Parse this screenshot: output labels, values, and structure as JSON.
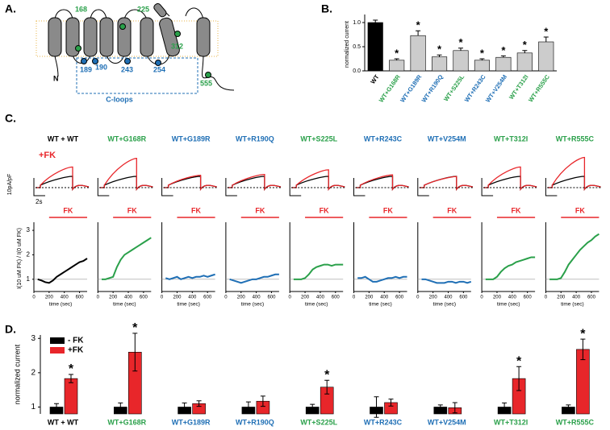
{
  "panel_labels": [
    "A.",
    "B.",
    "C.",
    "D."
  ],
  "diagram": {
    "n_terminus": "N",
    "c_loops": "C-loops",
    "residues": [
      "168",
      "225",
      "312",
      "189",
      "190",
      "243",
      "254",
      "555"
    ]
  },
  "chart_data": [
    {
      "type": "bar",
      "ylabel": "normalized current",
      "categories": [
        "WT",
        "WT+G168R",
        "WT+G189R",
        "WT+R190Q",
        "WT+S225L",
        "WT+R243C",
        "WT+V254M",
        "WT+T312I",
        "WT+R555C"
      ],
      "label_colors": [
        "#000000",
        "#2aa04a",
        "#1f6fb5",
        "#1f6fb5",
        "#2aa04a",
        "#1f6fb5",
        "#1f6fb5",
        "#2aa04a",
        "#2aa04a"
      ],
      "values": [
        1.0,
        0.22,
        0.73,
        0.29,
        0.42,
        0.22,
        0.28,
        0.37,
        0.6
      ],
      "errors": [
        0.05,
        0.03,
        0.1,
        0.04,
        0.05,
        0.03,
        0.03,
        0.05,
        0.1
      ],
      "colors": [
        "#000000",
        "#cccccc",
        "#cccccc",
        "#cccccc",
        "#cccccc",
        "#cccccc",
        "#cccccc",
        "#cccccc",
        "#cccccc"
      ],
      "annotations": [
        {
          "index": 1,
          "text": "*"
        },
        {
          "index": 2,
          "text": "*"
        },
        {
          "index": 3,
          "text": "*"
        },
        {
          "index": 4,
          "text": "*"
        },
        {
          "index": 5,
          "text": "*"
        },
        {
          "index": 6,
          "text": "*"
        },
        {
          "index": 7,
          "text": "*"
        },
        {
          "index": 8,
          "text": "*"
        }
      ],
      "ylim": [
        0,
        1.1
      ],
      "yticks": [
        {
          "value": 0,
          "label": "0.0"
        },
        {
          "value": 0.5,
          "label": "0.5"
        },
        {
          "value": 1,
          "label": "1.0"
        }
      ]
    },
    {
      "type": "line",
      "ylabel": "I(10 uM FK) / I(0 uM FK)",
      "xlabel": "time (sec)",
      "trace_legend": "+FK",
      "scale_y": "10pA/pF",
      "scale_x": "2s",
      "drug": "FK",
      "x": [
        50,
        100,
        150,
        200,
        250,
        300,
        350,
        400,
        450,
        500,
        550,
        600,
        650,
        700
      ],
      "series": [
        {
          "name": "WT + WT",
          "color": "#000000",
          "values": [
            1.0,
            0.95,
            0.88,
            0.85,
            0.95,
            1.1,
            1.2,
            1.3,
            1.4,
            1.5,
            1.6,
            1.7,
            1.75,
            1.85
          ]
        },
        {
          "name": "WT+G168R",
          "color": "#2aa04a",
          "values": [
            1.0,
            1.0,
            1.05,
            1.1,
            1.5,
            1.8,
            2.0,
            2.1,
            2.2,
            2.3,
            2.4,
            2.5,
            2.6,
            2.7
          ]
        },
        {
          "name": "WT+G189R",
          "color": "#1f6fb5",
          "values": [
            1.05,
            1.0,
            1.05,
            1.1,
            1.0,
            1.05,
            1.1,
            1.05,
            1.1,
            1.1,
            1.15,
            1.1,
            1.15,
            1.2
          ]
        },
        {
          "name": "WT+R190Q",
          "color": "#1f6fb5",
          "values": [
            1.0,
            0.95,
            0.9,
            0.85,
            0.9,
            0.95,
            1.0,
            1.0,
            1.05,
            1.1,
            1.1,
            1.15,
            1.2,
            1.2
          ]
        },
        {
          "name": "WT+S225L",
          "color": "#2aa04a",
          "values": [
            1.0,
            1.0,
            1.0,
            1.05,
            1.2,
            1.4,
            1.5,
            1.55,
            1.6,
            1.6,
            1.55,
            1.6,
            1.6,
            1.6
          ]
        },
        {
          "name": "WT+R243C",
          "color": "#1f6fb5",
          "values": [
            1.05,
            1.05,
            1.1,
            1.0,
            0.9,
            0.9,
            0.95,
            1.0,
            1.05,
            1.05,
            1.1,
            1.05,
            1.1,
            1.1
          ]
        },
        {
          "name": "WT+V254M",
          "color": "#1f6fb5",
          "values": [
            1.0,
            1.0,
            0.95,
            0.9,
            0.85,
            0.85,
            0.85,
            0.9,
            0.9,
            0.85,
            0.9,
            0.9,
            0.85,
            0.9
          ]
        },
        {
          "name": "WT+T312I",
          "color": "#2aa04a",
          "values": [
            1.0,
            1.0,
            1.0,
            1.1,
            1.3,
            1.45,
            1.55,
            1.6,
            1.7,
            1.75,
            1.8,
            1.85,
            1.9,
            1.9
          ]
        },
        {
          "name": "WT+R555C",
          "color": "#2aa04a",
          "values": [
            1.0,
            1.0,
            1.0,
            1.05,
            1.3,
            1.6,
            1.8,
            2.0,
            2.2,
            2.35,
            2.5,
            2.6,
            2.75,
            2.85
          ]
        }
      ],
      "drug_window": [
        200,
        700
      ],
      "xlim": [
        0,
        700
      ],
      "xticks": [
        0,
        200,
        400,
        600
      ],
      "ylim": [
        0.5,
        3.2
      ],
      "yticks": [
        1,
        2,
        3
      ]
    },
    {
      "type": "grouped-bar",
      "ylabel": "normalized current",
      "categories": [
        "WT + WT",
        "WT+G168R",
        "WT+G189R",
        "WT+R190Q",
        "WT+S225L",
        "WT+R243C",
        "WT+V254M",
        "WT+T312I",
        "WT+R555C"
      ],
      "label_colors": [
        "#000000",
        "#2aa04a",
        "#1f6fb5",
        "#1f6fb5",
        "#2aa04a",
        "#1f6fb5",
        "#1f6fb5",
        "#2aa04a",
        "#2aa04a"
      ],
      "series": [
        {
          "name": "- FK",
          "color": "#000000",
          "values": [
            1,
            1,
            1,
            1,
            1,
            1,
            1,
            1,
            1
          ],
          "errors": [
            0.1,
            0.12,
            0.12,
            0.15,
            0.08,
            0.3,
            0.06,
            0.12,
            0.06
          ]
        },
        {
          "name": "+FK",
          "color": "#e8262a",
          "values": [
            1.83,
            2.6,
            1.1,
            1.17,
            1.58,
            1.13,
            0.98,
            1.83,
            2.68
          ],
          "errors": [
            0.12,
            0.55,
            0.08,
            0.15,
            0.2,
            0.1,
            0.15,
            0.35,
            0.3
          ]
        }
      ],
      "annotations": [
        {
          "index": 0,
          "text": "*"
        },
        {
          "index": 1,
          "text": "*"
        },
        {
          "index": 4,
          "text": "*"
        },
        {
          "index": 7,
          "text": "*"
        },
        {
          "index": 8,
          "text": "*"
        }
      ],
      "ylim": [
        0.8,
        3.1
      ],
      "yticks": [
        1,
        2,
        3
      ]
    }
  ]
}
